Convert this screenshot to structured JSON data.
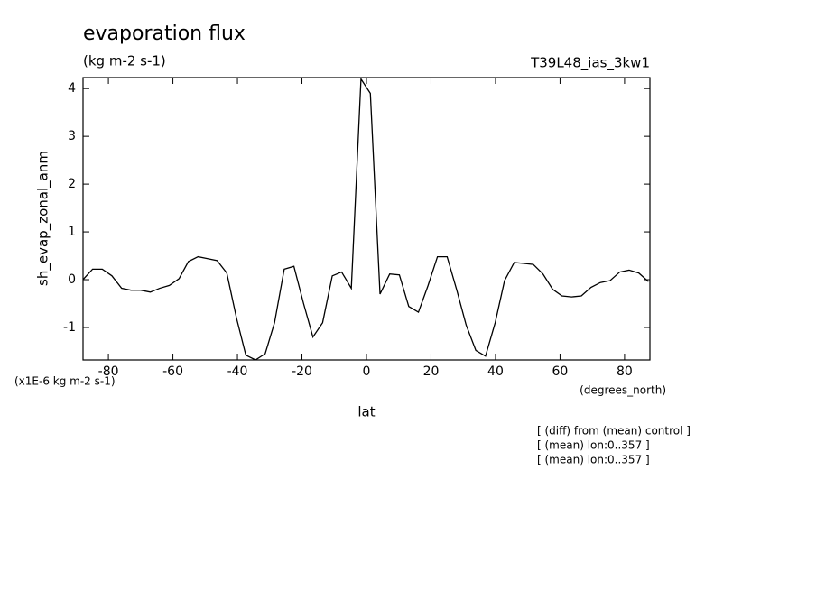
{
  "chart_data": {
    "type": "line",
    "title": "evaporation flux",
    "subtitle": "(kg m-2 s-1)",
    "dataset": "T39L48_ias_3kw1",
    "y_label": "sh_evap_zonal_anm",
    "x_label": "lat",
    "x_units": "(degrees_north)",
    "y_scale_note": "(x1E-6 kg m-2 s-1)",
    "notes": [
      "[ (diff) from (mean) control ]",
      "[ (mean) lon:0..357 ]",
      "[ (mean) lon:0..357 ]"
    ],
    "xlim": [
      -87.86,
      87.86
    ],
    "ylim": [
      -1.68,
      4.23
    ],
    "xticks": [
      -80,
      -60,
      -40,
      -20,
      0,
      20,
      40,
      60,
      80
    ],
    "yticks": [
      -1,
      0,
      1,
      2,
      3,
      4
    ],
    "color": "#000000",
    "x": [
      -87.9,
      -84.9,
      -81.9,
      -78.9,
      -75.9,
      -73.0,
      -70.0,
      -67.0,
      -64.1,
      -61.1,
      -58.1,
      -55.2,
      -52.2,
      -49.2,
      -46.3,
      -43.3,
      -40.3,
      -37.4,
      -34.4,
      -31.4,
      -28.5,
      -25.5,
      -22.5,
      -19.5,
      -16.6,
      -13.6,
      -10.6,
      -7.7,
      -4.7,
      -1.7,
      1.2,
      4.2,
      7.2,
      10.2,
      13.1,
      16.1,
      19.1,
      22.0,
      25.0,
      28.0,
      30.9,
      33.9,
      36.9,
      39.9,
      42.8,
      45.8,
      48.8,
      51.7,
      54.7,
      57.7,
      60.6,
      63.6,
      66.6,
      69.6,
      72.5,
      75.5,
      78.5,
      81.4,
      84.4,
      87.4
    ],
    "values": [
      0.0,
      0.22,
      0.22,
      0.08,
      -0.18,
      -0.22,
      -0.22,
      -0.26,
      -0.18,
      -0.12,
      0.02,
      0.38,
      0.48,
      0.44,
      0.4,
      0.14,
      -0.8,
      -1.58,
      -1.68,
      -1.55,
      -0.9,
      0.22,
      0.28,
      -0.5,
      -1.2,
      -0.9,
      0.08,
      0.16,
      -0.18,
      4.2,
      3.9,
      -0.3,
      0.12,
      0.1,
      -0.56,
      -0.68,
      -0.12,
      0.48,
      0.48,
      -0.22,
      -0.95,
      -1.48,
      -1.6,
      -0.9,
      -0.02,
      0.36,
      0.34,
      0.32,
      0.12,
      -0.2,
      -0.34,
      -0.36,
      -0.34,
      -0.16,
      -0.06,
      -0.02,
      0.16,
      0.2,
      0.14,
      -0.04
    ]
  }
}
